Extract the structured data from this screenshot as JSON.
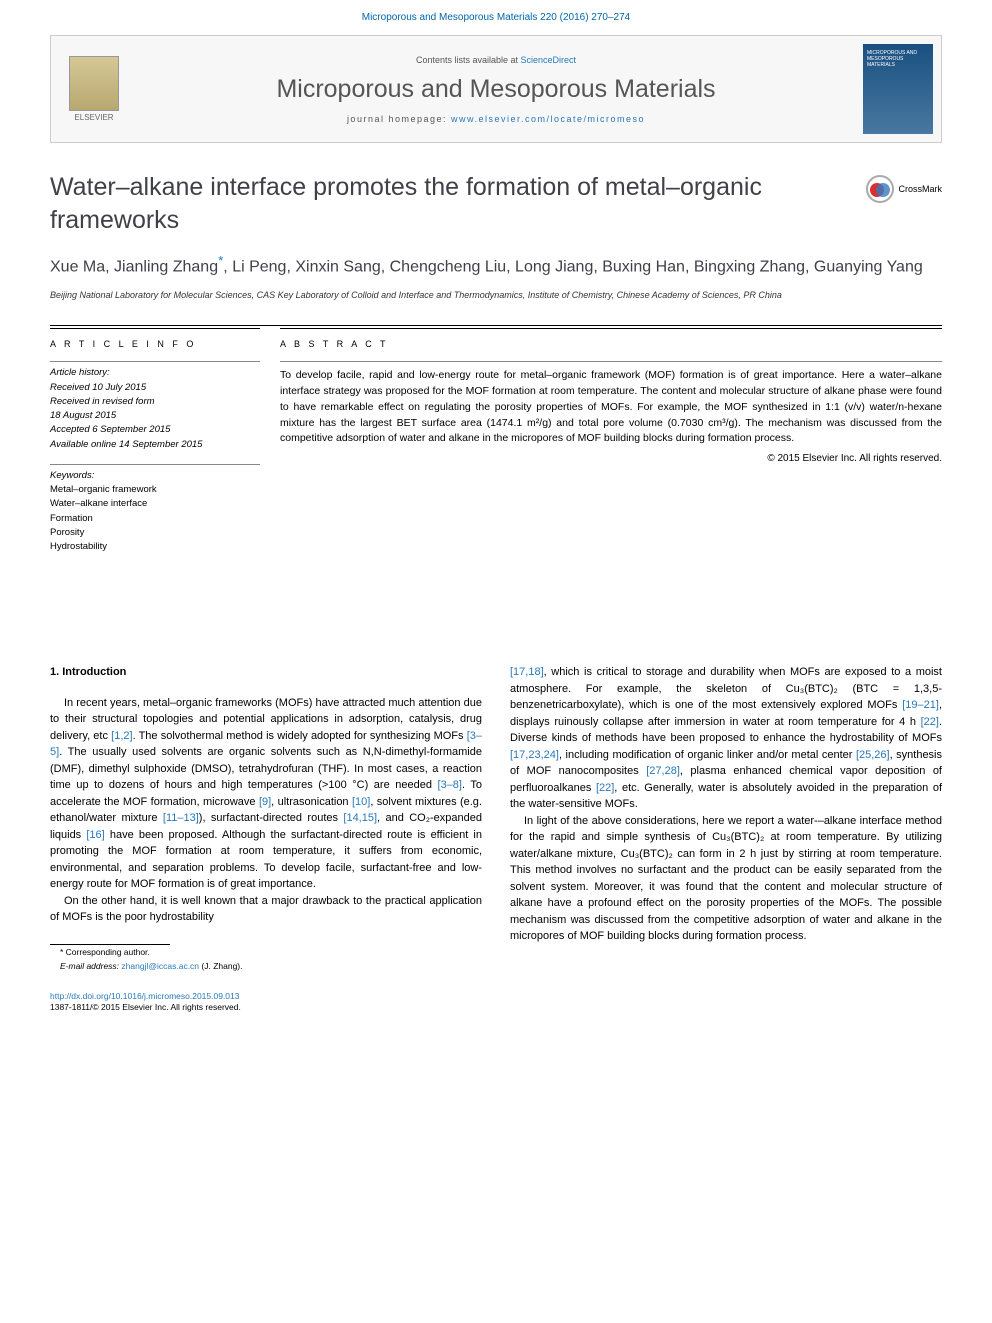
{
  "citation": "Microporous and Mesoporous Materials 220 (2016) 270–274",
  "banner": {
    "contents_label": "Contents lists available at ",
    "sciencedirect": "ScienceDirect",
    "journal": "Microporous and Mesoporous Materials",
    "homepage_label": "journal homepage: ",
    "homepage_url": "www.elsevier.com/locate/micromeso",
    "publisher": "ELSEVIER",
    "cover_text": "MICROPOROUS AND MESOPOROUS MATERIALS"
  },
  "title": "Water–alkane interface promotes the formation of metal–organic frameworks",
  "crossmark": "CrossMark",
  "authors_line1": "Xue Ma, Jianling Zhang",
  "authors_star": "*",
  "authors_line2": ", Li Peng, Xinxin Sang, Chengcheng Liu, Long Jiang, Buxing Han, Bingxing Zhang, Guanying Yang",
  "affiliation": "Beijing National Laboratory for Molecular Sciences, CAS Key Laboratory of Colloid and Interface and Thermodynamics, Institute of Chemistry, Chinese Academy of Sciences, PR China",
  "article_info_heading": "A R T I C L E   I N F O",
  "abstract_heading": "A B S T R A C T",
  "history": {
    "label": "Article history:",
    "received": "Received 10 July 2015",
    "revised": "Received in revised form",
    "revised_date": "18 August 2015",
    "accepted": "Accepted 6 September 2015",
    "online": "Available online 14 September 2015"
  },
  "keywords": {
    "label": "Keywords:",
    "k1": "Metal–organic framework",
    "k2": "Water–alkane interface",
    "k3": "Formation",
    "k4": "Porosity",
    "k5": "Hydrostability"
  },
  "abstract": "To develop facile, rapid and low-energy route for metal–organic framework (MOF) formation is of great importance. Here a water–alkane interface strategy was proposed for the MOF formation at room temperature. The content and molecular structure of alkane phase were found to have remarkable effect on regulating the porosity properties of MOFs. For example, the MOF synthesized in 1:1 (v/v) water/n-hexane mixture has the largest BET surface area (1474.1 m²/g) and total pore volume (0.7030 cm³/g). The mechanism was discussed from the competitive adsorption of water and alkane in the micropores of MOF building blocks during formation process.",
  "copyright": "© 2015 Elsevier Inc. All rights reserved.",
  "intro_heading": "1. Introduction",
  "col1": {
    "p1a": "In recent years, metal–organic frameworks (MOFs) have attracted much attention due to their structural topologies and potential applications in adsorption, catalysis, drug delivery, etc ",
    "r1": "[1,2]",
    "p1b": ". The solvothermal method is widely adopted for synthesizing MOFs ",
    "r2": "[3–5]",
    "p1c": ". The usually used solvents are organic solvents such as N,N-dimethyl-formamide (DMF), dimethyl sulphoxide (DMSO), tetrahydrofuran (THF). In most cases, a reaction time up to dozens of hours and high temperatures (>100 °C) are needed ",
    "r3": "[3–8]",
    "p1d": ". To accelerate the MOF formation, microwave ",
    "r4": "[9]",
    "p1e": ", ultrasonication ",
    "r5": "[10]",
    "p1f": ", solvent mixtures (e.g. ethanol/water mixture ",
    "r6": "[11–13]",
    "p1g": "), surfactant-directed routes ",
    "r7": "[14,15]",
    "p1h": ", and CO₂-expanded liquids ",
    "r8": "[16]",
    "p1i": " have been proposed. Although the surfactant-directed route is efficient in promoting the MOF formation at room temperature, it suffers from economic, environmental, and separation problems. To develop facile, surfactant-free and low-energy route for MOF formation is of great importance.",
    "p2": "On the other hand, it is well known that a major drawback to the practical application of MOFs is the poor hydrostability"
  },
  "col2": {
    "r9": "[17,18]",
    "p1a": ", which is critical to storage and durability when MOFs are exposed to a moist atmosphere. For example, the skeleton of Cu₃(BTC)₂ (BTC = 1,3,5-benzenetricarboxylate), which is one of the most extensively explored MOFs ",
    "r10": "[19–21]",
    "p1b": ", displays ruinously collapse after immersion in water at room temperature for 4 h ",
    "r11": "[22]",
    "p1c": ". Diverse kinds of methods have been proposed to enhance the hydrostability of MOFs ",
    "r12": "[17,23,24]",
    "p1d": ", including modification of organic linker and/or metal center ",
    "r13": "[25,26]",
    "p1e": ", synthesis of MOF nanocomposites ",
    "r14": "[27,28]",
    "p1f": ", plasma enhanced chemical vapor deposition of perfluoroalkanes ",
    "r15": "[22]",
    "p1g": ", etc. Generally, water is absolutely avoided in the preparation of the water-sensitive MOFs.",
    "p2": "In light of the above considerations, here we report a water-–alkane interface method for the rapid and simple synthesis of Cu₃(BTC)₂ at room temperature. By utilizing water/alkane mixture, Cu₃(BTC)₂ can form in 2 h just by stirring at room temperature. This method involves no surfactant and the product can be easily separated from the solvent system. Moreover, it was found that the content and molecular structure of alkane have a profound effect on the porosity properties of the MOFs. The possible mechanism was discussed from the competitive adsorption of water and alkane in the micropores of MOF building blocks during formation process."
  },
  "footer": {
    "corr": "* Corresponding author.",
    "email_label": "E-mail address: ",
    "email": "zhangjl@iccas.ac.cn",
    "email_suffix": " (J. Zhang).",
    "doi": "http://dx.doi.org/10.1016/j.micromeso.2015.09.013",
    "issn": "1387-1811/© 2015 Elsevier Inc. All rights reserved."
  }
}
